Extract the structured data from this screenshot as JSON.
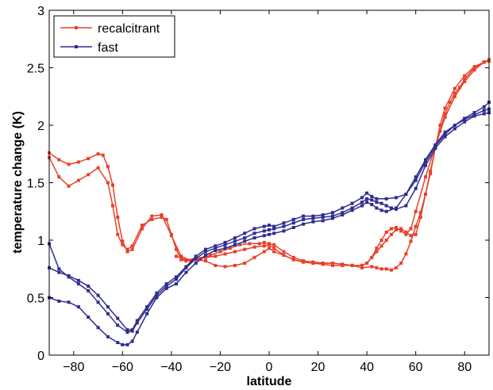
{
  "chart_data": {
    "type": "line",
    "xlabel": "latitude",
    "ylabel": "temperature change (K)",
    "xlim": [
      -90,
      90
    ],
    "ylim": [
      0,
      3
    ],
    "xticks": [
      -80,
      -60,
      -40,
      -20,
      0,
      20,
      40,
      60,
      80
    ],
    "yticks": [
      0,
      0.5,
      1,
      1.5,
      2,
      2.5,
      3
    ],
    "xtick_labels": [
      "−80",
      "−60",
      "−40",
      "−20",
      "0",
      "20",
      "40",
      "60",
      "80"
    ],
    "ytick_labels": [
      "0",
      "0.5",
      "1",
      "1.5",
      "2",
      "2.5",
      "3"
    ],
    "grid": false,
    "legend_position": "top-left",
    "legend": [
      {
        "label": "recalcitrant",
        "color": "#e8402a"
      },
      {
        "label": "fast",
        "color": "#2e2d8f"
      }
    ],
    "series": [
      {
        "group": "recalcitrant",
        "color": "#e8402a",
        "x": [
          -90,
          -86,
          -82,
          -78,
          -74,
          -70,
          -66,
          -64,
          -62,
          -60,
          -58,
          -56,
          -52,
          -48,
          -44,
          -42,
          -40,
          -38,
          -36,
          -34,
          -30,
          -26,
          -22,
          -18,
          -14,
          -10,
          -6,
          -2,
          0,
          2,
          6,
          10,
          14,
          18,
          22,
          26,
          30,
          34,
          38,
          42,
          44,
          46,
          48,
          50,
          52,
          54,
          56,
          58,
          60,
          62,
          64,
          66,
          68,
          70,
          72,
          76,
          80,
          84,
          88,
          90
        ],
        "y": [
          1.72,
          1.55,
          1.47,
          1.52,
          1.57,
          1.63,
          1.5,
          1.3,
          1.05,
          0.96,
          0.92,
          0.95,
          1.13,
          1.18,
          1.2,
          1.18,
          1.05,
          0.92,
          0.83,
          0.82,
          0.83,
          0.82,
          0.78,
          0.77,
          0.78,
          0.8,
          0.85,
          0.9,
          0.93,
          0.9,
          0.87,
          0.83,
          0.81,
          0.8,
          0.8,
          0.8,
          0.79,
          0.78,
          0.76,
          0.77,
          0.76,
          0.75,
          0.75,
          0.74,
          0.76,
          0.8,
          0.88,
          0.99,
          1.12,
          1.24,
          1.4,
          1.58,
          1.8,
          2.0,
          2.15,
          2.32,
          2.43,
          2.51,
          2.55,
          2.56
        ]
      },
      {
        "group": "recalcitrant",
        "color": "#e8402a",
        "x": [
          -90,
          -86,
          -82,
          -78,
          -74,
          -70,
          -68,
          -66,
          -64,
          -62,
          -60,
          -58,
          -56,
          -52,
          -48,
          -44,
          -40,
          -36,
          -32,
          -28,
          -24,
          -20,
          -16,
          -12,
          -8,
          -4,
          -2,
          0,
          2,
          6,
          10,
          14,
          18,
          22,
          26,
          30,
          34,
          38,
          40,
          42,
          44,
          46,
          48,
          50,
          52,
          54,
          56,
          58,
          60,
          64,
          68,
          72,
          76,
          80,
          84,
          88,
          90
        ],
        "y": [
          1.76,
          1.7,
          1.66,
          1.68,
          1.71,
          1.75,
          1.74,
          1.64,
          1.48,
          1.2,
          0.99,
          0.9,
          0.92,
          1.1,
          1.21,
          1.22,
          1.04,
          0.86,
          0.82,
          0.84,
          0.87,
          0.9,
          0.93,
          0.96,
          0.97,
          0.97,
          0.98,
          0.97,
          0.96,
          0.9,
          0.85,
          0.82,
          0.81,
          0.8,
          0.8,
          0.79,
          0.78,
          0.78,
          0.8,
          0.85,
          0.93,
          1.0,
          1.07,
          1.1,
          1.11,
          1.08,
          1.05,
          1.1,
          1.25,
          1.55,
          1.82,
          2.07,
          2.25,
          2.38,
          2.48,
          2.55,
          2.57
        ]
      },
      {
        "group": "recalcitrant",
        "color": "#e8402a",
        "x": [
          -38,
          -34,
          -30,
          -26,
          -22,
          -18,
          -14,
          -10,
          -6,
          -2,
          0,
          2,
          6,
          10,
          14,
          18,
          22,
          26,
          30,
          34,
          38,
          40,
          42,
          44,
          46,
          48,
          50,
          52,
          54,
          56,
          58,
          60,
          62,
          64,
          66,
          68,
          70,
          72,
          74,
          76,
          78,
          80,
          84,
          88,
          90
        ],
        "y": [
          0.86,
          0.83,
          0.84,
          0.85,
          0.86,
          0.88,
          0.9,
          0.92,
          0.94,
          0.95,
          0.96,
          0.93,
          0.87,
          0.83,
          0.81,
          0.8,
          0.79,
          0.78,
          0.78,
          0.78,
          0.78,
          0.8,
          0.85,
          0.9,
          0.95,
          1.0,
          1.05,
          1.09,
          1.1,
          1.07,
          1.04,
          1.05,
          1.2,
          1.4,
          1.6,
          1.8,
          1.95,
          2.1,
          2.2,
          2.28,
          2.33,
          2.4,
          2.5,
          2.55,
          2.56
        ]
      },
      {
        "group": "fast",
        "color": "#2e2d8f",
        "x": [
          -90,
          -86,
          -82,
          -78,
          -74,
          -70,
          -66,
          -62,
          -58,
          -56,
          -54,
          -50,
          -46,
          -42,
          -38,
          -34,
          -30,
          -26,
          -22,
          -18,
          -14,
          -10,
          -6,
          -2,
          0,
          2,
          6,
          10,
          14,
          18,
          22,
          26,
          30,
          34,
          38,
          40,
          42,
          44,
          46,
          48,
          50,
          52,
          56,
          60,
          64,
          68,
          72,
          76,
          80,
          84,
          88,
          90
        ],
        "y": [
          0.97,
          0.75,
          0.68,
          0.62,
          0.56,
          0.46,
          0.36,
          0.26,
          0.2,
          0.21,
          0.28,
          0.4,
          0.52,
          0.6,
          0.66,
          0.76,
          0.84,
          0.9,
          0.93,
          0.96,
          0.99,
          1.02,
          1.06,
          1.08,
          1.09,
          1.1,
          1.12,
          1.15,
          1.18,
          1.19,
          1.2,
          1.21,
          1.24,
          1.28,
          1.33,
          1.36,
          1.35,
          1.33,
          1.32,
          1.3,
          1.28,
          1.27,
          1.3,
          1.45,
          1.65,
          1.8,
          1.9,
          1.97,
          2.03,
          2.08,
          2.1,
          2.11
        ]
      },
      {
        "group": "fast",
        "color": "#2e2d8f",
        "x": [
          -90,
          -86,
          -82,
          -78,
          -74,
          -70,
          -66,
          -62,
          -58,
          -56,
          -54,
          -50,
          -46,
          -42,
          -38,
          -34,
          -30,
          -26,
          -22,
          -18,
          -14,
          -10,
          -6,
          -2,
          0,
          2,
          6,
          10,
          14,
          18,
          22,
          26,
          30,
          34,
          38,
          40,
          42,
          44,
          48,
          52,
          56,
          60,
          64,
          68,
          72,
          76,
          80,
          84,
          88,
          90
        ],
        "y": [
          0.76,
          0.72,
          0.69,
          0.65,
          0.6,
          0.52,
          0.42,
          0.32,
          0.22,
          0.22,
          0.3,
          0.42,
          0.54,
          0.62,
          0.68,
          0.77,
          0.86,
          0.92,
          0.95,
          0.98,
          1.02,
          1.06,
          1.1,
          1.12,
          1.13,
          1.12,
          1.15,
          1.18,
          1.21,
          1.21,
          1.22,
          1.24,
          1.28,
          1.32,
          1.37,
          1.41,
          1.38,
          1.36,
          1.36,
          1.37,
          1.4,
          1.52,
          1.68,
          1.82,
          1.92,
          2.0,
          2.06,
          2.11,
          2.16,
          2.2
        ]
      },
      {
        "group": "fast",
        "color": "#2e2d8f",
        "x": [
          -90,
          -86,
          -82,
          -78,
          -74,
          -70,
          -66,
          -62,
          -60,
          -58,
          -56,
          -54,
          -50,
          -46,
          -42,
          -38,
          -34,
          -30,
          -26,
          -22,
          -18,
          -14,
          -10,
          -6,
          -2,
          0,
          2,
          6,
          10,
          14,
          18,
          22,
          26,
          30,
          34,
          38,
          40,
          42,
          44,
          46,
          48,
          52,
          56,
          60,
          64,
          68,
          72,
          76,
          80,
          84,
          88,
          90
        ],
        "y": [
          0.5,
          0.47,
          0.46,
          0.42,
          0.33,
          0.24,
          0.16,
          0.11,
          0.09,
          0.09,
          0.12,
          0.2,
          0.36,
          0.5,
          0.58,
          0.62,
          0.72,
          0.8,
          0.87,
          0.91,
          0.93,
          0.96,
          0.99,
          1.02,
          1.04,
          1.05,
          1.06,
          1.08,
          1.11,
          1.14,
          1.16,
          1.17,
          1.19,
          1.22,
          1.26,
          1.3,
          1.33,
          1.31,
          1.28,
          1.26,
          1.25,
          1.28,
          1.4,
          1.55,
          1.7,
          1.83,
          1.94,
          2.0,
          2.05,
          2.09,
          2.13,
          2.14
        ]
      }
    ]
  }
}
